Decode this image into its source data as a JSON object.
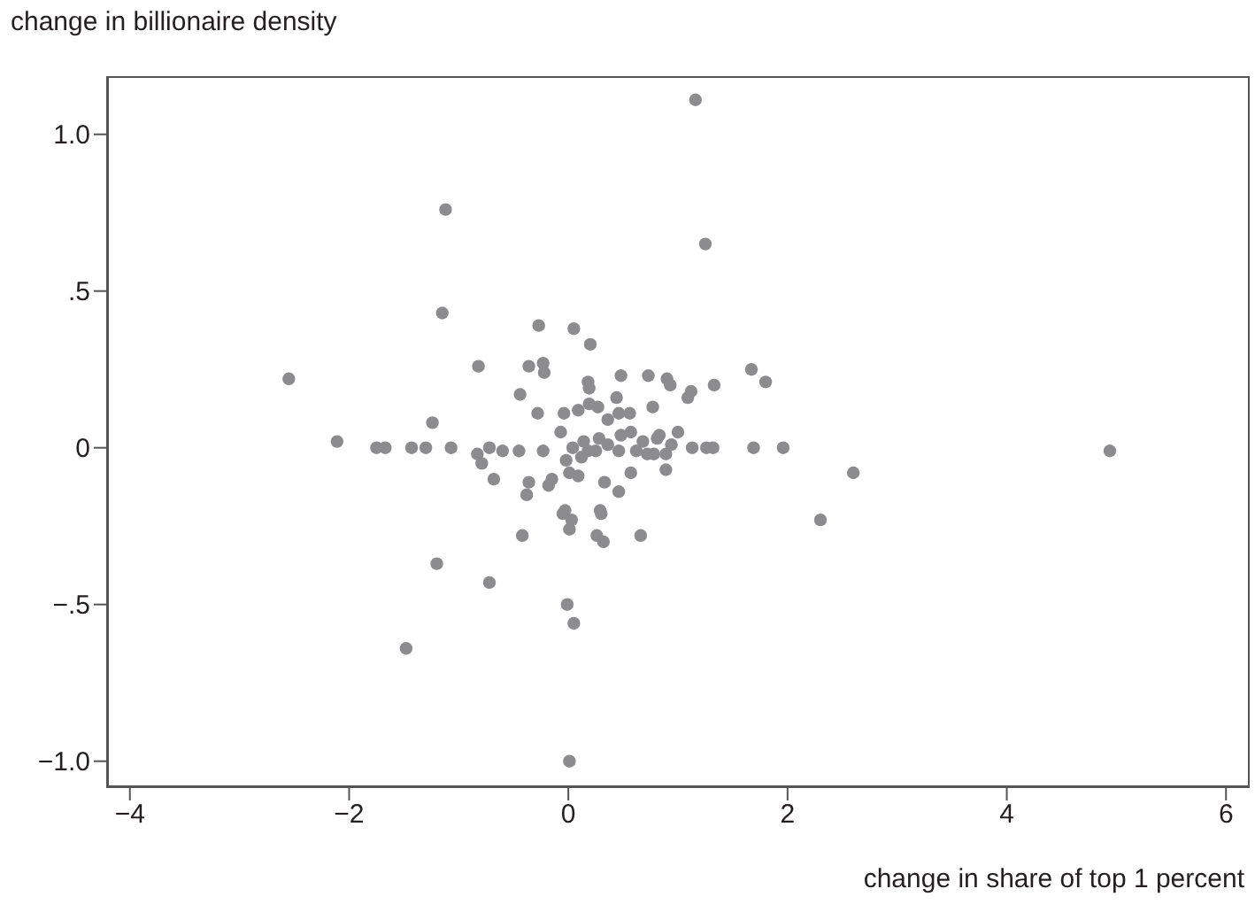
{
  "chart_data": {
    "type": "scatter",
    "ylabel": "change in billionaire density",
    "xlabel": "change in share of top 1 percent",
    "xlim": [
      -4.2,
      6.2
    ],
    "ylim": [
      -1.08,
      1.18
    ],
    "xticks": [
      {
        "value": -4,
        "label": "−4"
      },
      {
        "value": -2,
        "label": "−2"
      },
      0,
      2,
      4,
      6
    ],
    "yticks": [
      {
        "value": -1,
        "label": "−1.0"
      },
      {
        "value": -0.5,
        "label": "−.5"
      },
      0,
      {
        "value": 0.5,
        "label": ".5"
      },
      {
        "value": 1,
        "label": "1.0"
      }
    ],
    "marker": "circle",
    "series": [
      {
        "color": "#8c8c8e",
        "x": [
          1.16,
          1.25,
          -1.12,
          -2.55,
          4.94,
          2.6,
          2.3,
          -1.15,
          -0.27,
          0.05,
          0.2,
          -0.82,
          -0.36,
          -0.23,
          -0.22,
          0.18,
          0.19,
          0.48,
          0.73,
          0.9,
          0.93,
          1.12,
          1.09,
          1.33,
          1.67,
          1.8,
          -0.44,
          0.44,
          0.77,
          -0.28,
          -0.04,
          0.09,
          0.19,
          0.27,
          0.36,
          0.46,
          0.56,
          -1.24,
          -2.11,
          -1.75,
          -1.67,
          -1.43,
          -1.3,
          -1.07,
          -0.83,
          -0.72,
          -0.6,
          -0.45,
          -0.79,
          -0.68,
          -0.23,
          -0.07,
          0.14,
          0.25,
          0.36,
          0.46,
          0.57,
          0.68,
          0.78,
          0.81,
          0.89,
          1.0,
          0.94,
          1.13,
          1.26,
          1.32,
          1.69,
          1.96,
          -0.15,
          -0.18,
          -0.36,
          -0.38,
          0.01,
          0.09,
          0.33,
          0.46,
          0.57,
          0.89,
          0.29,
          -0.03,
          0.04,
          0.12,
          0.18,
          0.28,
          0.48,
          0.62,
          0.72,
          0.83,
          -0.02,
          -0.42,
          -0.05,
          0.03,
          0.01,
          0.3,
          0.26,
          0.32,
          0.66,
          -1.2,
          -0.72,
          -1.48,
          -0.01,
          0.05,
          0.01
        ],
        "values": [
          1.11,
          0.65,
          0.76,
          0.22,
          -0.01,
          -0.08,
          -0.23,
          0.43,
          0.39,
          0.38,
          0.33,
          0.26,
          0.26,
          0.27,
          0.24,
          0.21,
          0.19,
          0.23,
          0.23,
          0.22,
          0.2,
          0.18,
          0.16,
          0.2,
          0.25,
          0.21,
          0.17,
          0.16,
          0.13,
          0.11,
          0.11,
          0.12,
          0.14,
          0.13,
          0.09,
          0.11,
          0.11,
          0.08,
          0.02,
          0,
          0,
          0,
          0,
          0,
          -0.02,
          0,
          -0.01,
          -0.01,
          -0.05,
          -0.1,
          -0.01,
          0.05,
          0.02,
          -0.01,
          0.01,
          -0.01,
          0.05,
          0.02,
          -0.02,
          0.03,
          -0.02,
          0.05,
          0.01,
          0,
          0,
          0,
          0,
          0,
          -0.1,
          -0.12,
          -0.11,
          -0.15,
          -0.08,
          -0.09,
          -0.11,
          -0.14,
          -0.08,
          -0.07,
          -0.2,
          -0.2,
          0,
          -0.03,
          -0.01,
          0.03,
          0.04,
          -0.01,
          -0.02,
          0.04,
          -0.04,
          -0.28,
          -0.21,
          -0.23,
          -0.26,
          -0.21,
          -0.28,
          -0.3,
          -0.28,
          -0.37,
          -0.43,
          -0.64,
          -0.5,
          -0.56,
          -1.0
        ]
      }
    ]
  }
}
